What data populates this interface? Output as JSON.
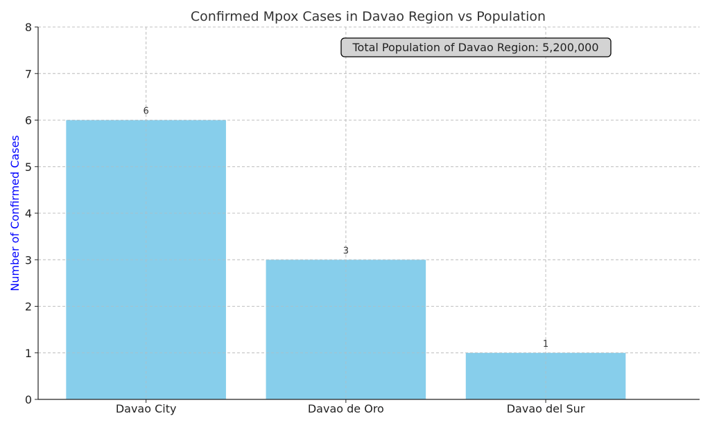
{
  "chart_data": {
    "type": "bar",
    "title": "Confirmed Mpox Cases in Davao Region vs Population",
    "xlabel": "",
    "ylabel": "Number of Confirmed Cases",
    "categories": [
      "Davao City",
      "Davao de Oro",
      "Davao del Sur"
    ],
    "values": [
      6,
      3,
      1
    ],
    "data_labels": [
      "6",
      "3",
      "1"
    ],
    "ylim": [
      0,
      8
    ],
    "yticks": [
      "0",
      "1",
      "2",
      "3",
      "4",
      "5",
      "6",
      "7",
      "8"
    ],
    "grid": true,
    "annotation": "Total Population of Davao Region: 5,200,000",
    "colors": {
      "bar": "#87ceeb",
      "ylabel": "#0000ff",
      "grid": "#cccccc",
      "annotation_bg": "#d3d3d3"
    }
  }
}
